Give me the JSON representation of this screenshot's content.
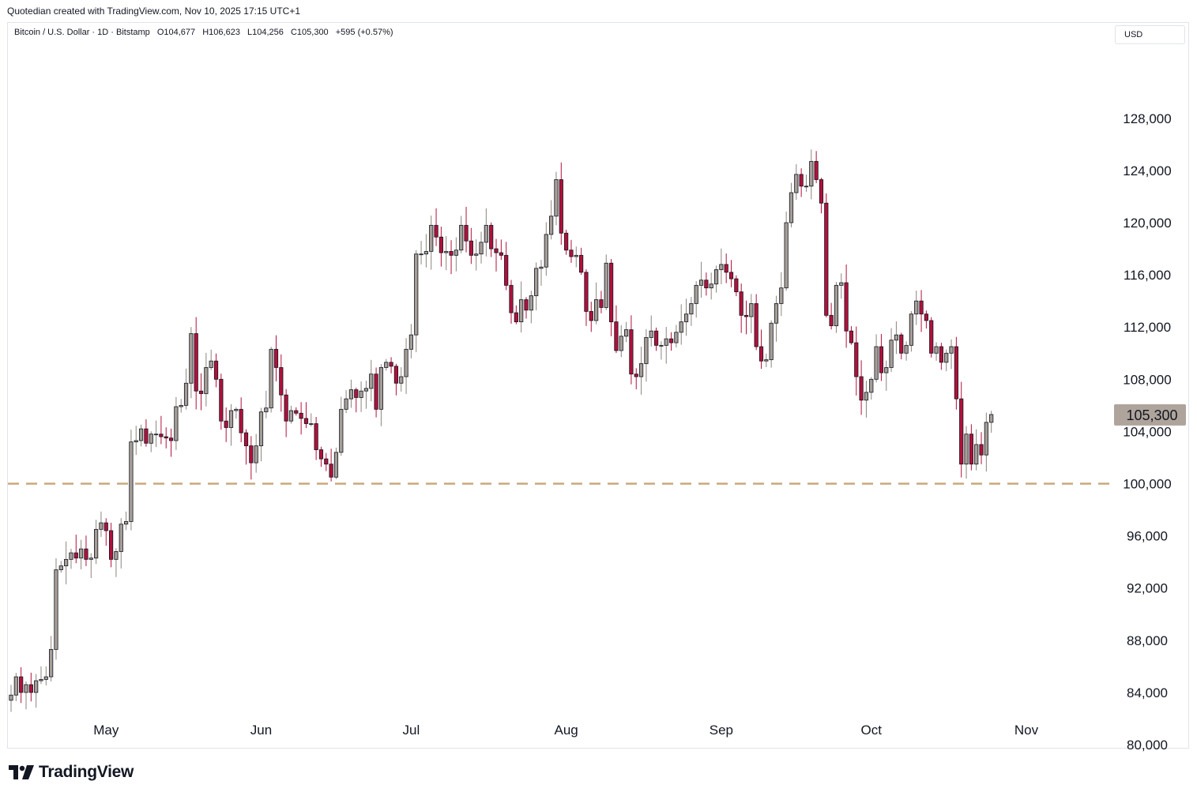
{
  "header": {
    "credit": "Quotedian created with TradingView.com, Nov 10, 2025 17:15 UTC+1"
  },
  "symbol": {
    "name": "Bitcoin / U.S. Dollar · 1D · Bitstamp",
    "open": "O104,677",
    "high": "H106,623",
    "low": "L104,256",
    "close": "C105,300",
    "change": "+595 (+0.57%)"
  },
  "currency": "USD",
  "branding": {
    "logo_text": "TradingView"
  },
  "colors": {
    "up_candle": "#a69e97",
    "down_candle": "#b2103b",
    "outline": "#131722",
    "support_line": "#c9a87c",
    "price_label_bg": "#aea49b"
  },
  "chart_data": {
    "type": "candlestick",
    "title": "Bitcoin / U.S. Dollar · 1D · Bitstamp",
    "ylim": [
      78000,
      130000
    ],
    "y_ticks": [
      "128,000",
      "124,000",
      "120,000",
      "116,000",
      "112,000",
      "108,000",
      "104,000",
      "100,000",
      "96,000",
      "92,000",
      "88,000",
      "84,000",
      "80,000"
    ],
    "y_tick_values": [
      128000,
      124000,
      120000,
      116000,
      112000,
      108000,
      104000,
      100000,
      96000,
      92000,
      88000,
      84000,
      80000
    ],
    "x_labels": [
      "May",
      "Jun",
      "Jul",
      "Aug",
      "Sep",
      "Oct",
      "Nov"
    ],
    "x_label_day_index": [
      19,
      50,
      80,
      111,
      142,
      172,
      203
    ],
    "last_price": {
      "value": 105300,
      "label": "105,300"
    },
    "support_level": 100000,
    "start_date": "2025-04-12",
    "closes": [
      83800,
      85200,
      84000,
      84600,
      84000,
      84900,
      85000,
      85200,
      87300,
      93400,
      93700,
      94200,
      94700,
      94300,
      95000,
      94200,
      94300,
      96500,
      97000,
      96400,
      94200,
      94800,
      96900,
      97100,
      103200,
      103300,
      104200,
      103100,
      103800,
      103800,
      103600,
      103500,
      103300,
      105900,
      106000,
      107700,
      111500,
      107100,
      106900,
      108900,
      109400,
      108000,
      104800,
      104300,
      105600,
      105700,
      103900,
      102900,
      101600,
      102900,
      105500,
      105800,
      110300,
      108900,
      106800,
      104800,
      105600,
      105400,
      105000,
      104600,
      104600,
      102600,
      101900,
      101500,
      100500,
      102400,
      105700,
      106500,
      107200,
      106600,
      107100,
      107300,
      108400,
      105700,
      108900,
      109300,
      109000,
      107700,
      108200,
      110300,
      111400,
      117600,
      117600,
      117800,
      119800,
      118900,
      117700,
      117800,
      117500,
      117900,
      119800,
      118600,
      117500,
      117600,
      118500,
      119800,
      118000,
      117700,
      117500,
      115200,
      113100,
      112400,
      114100,
      113300,
      114400,
      116500,
      116600,
      119100,
      120500,
      123300,
      119200,
      117900,
      117400,
      117500,
      116200,
      113200,
      112500,
      114100,
      113500,
      116900,
      112400,
      110200,
      111300,
      111800,
      108400,
      108200,
      109200,
      111200,
      111700,
      110600,
      110600,
      111100,
      110800,
      111600,
      112400,
      113000,
      113800,
      115200,
      115600,
      115000,
      115300,
      116400,
      116800,
      116200,
      115700,
      114700,
      112900,
      112800,
      113800,
      110500,
      109400,
      109500,
      112300,
      113800,
      115000,
      120000,
      122300,
      123700,
      122800,
      122800,
      124700,
      123300,
      121500,
      112900,
      112100,
      115200,
      115400,
      111700,
      110800,
      108200,
      106400,
      107000,
      108000,
      110500,
      108500,
      108900,
      111000,
      111400,
      110000,
      110600,
      113000,
      114000,
      113000,
      112500,
      110000,
      110500,
      109300,
      110000,
      110500,
      106500,
      101500,
      103800,
      101500,
      103000,
      102200,
      104700,
      105300
    ]
  }
}
